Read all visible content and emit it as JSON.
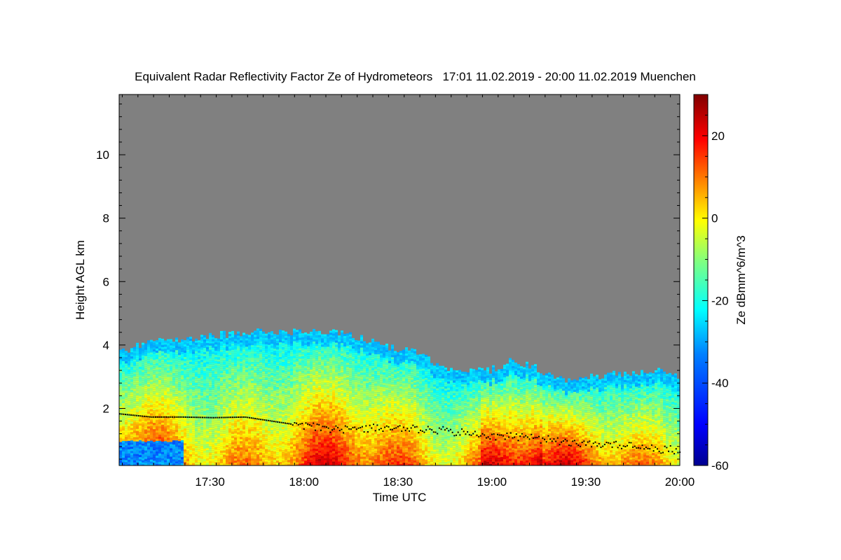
{
  "chart_data": {
    "type": "heatmap",
    "title": "Equivalent Radar Reflectivity Factor Ze of Hydrometeors   17:01 11.02.2019 - 20:00 11.02.2019 Muenchen",
    "xlabel": "Time UTC",
    "ylabel": "Height AGL km",
    "colorbar_label": "Ze dBmm^6/m^3",
    "x_range": [
      "17:01",
      "20:00"
    ],
    "y_range_km": [
      0.2,
      11.9
    ],
    "colorbar_range_dbz": [
      -60,
      30
    ],
    "x_ticks": [
      {
        "label": "17:30",
        "minutes": 29
      },
      {
        "label": "18:00",
        "minutes": 59
      },
      {
        "label": "18:30",
        "minutes": 89
      },
      {
        "label": "19:00",
        "minutes": 119
      },
      {
        "label": "19:30",
        "minutes": 149
      },
      {
        "label": "20:00",
        "minutes": 179
      }
    ],
    "y_ticks": [
      {
        "label": "2",
        "value": 2
      },
      {
        "label": "4",
        "value": 4
      },
      {
        "label": "6",
        "value": 6
      },
      {
        "label": "8",
        "value": 8
      },
      {
        "label": "10",
        "value": 10
      }
    ],
    "colorbar_ticks": [
      {
        "label": "20",
        "value": 20
      },
      {
        "label": "0",
        "value": 0
      },
      {
        "label": "-20",
        "value": -20
      },
      {
        "label": "-40",
        "value": -40
      },
      {
        "label": "-60",
        "value": -60
      }
    ],
    "no_data_color": "#808080",
    "colormap": [
      "#00008f",
      "#0000ff",
      "#0080ff",
      "#00ffff",
      "#80ff80",
      "#ffff00",
      "#ff8000",
      "#ff0000",
      "#800000"
    ],
    "cloud_top_km": [
      [
        0,
        3.8
      ],
      [
        10,
        4.1
      ],
      [
        20,
        4.2
      ],
      [
        30,
        4.3
      ],
      [
        40,
        4.4
      ],
      [
        50,
        4.4
      ],
      [
        60,
        4.4
      ],
      [
        70,
        4.4
      ],
      [
        80,
        4.1
      ],
      [
        87,
        3.9
      ],
      [
        95,
        3.8
      ],
      [
        102,
        3.3
      ],
      [
        110,
        3.2
      ],
      [
        118,
        3.2
      ],
      [
        125,
        3.5
      ],
      [
        132,
        3.3
      ],
      [
        140,
        2.9
      ],
      [
        150,
        3.0
      ],
      [
        160,
        3.1
      ],
      [
        170,
        3.2
      ],
      [
        179,
        3.0
      ]
    ],
    "cloud_base_km": [
      [
        0,
        1.85
      ],
      [
        10,
        1.75
      ],
      [
        20,
        1.75
      ],
      [
        30,
        1.73
      ],
      [
        40,
        1.75
      ],
      [
        50,
        1.6
      ],
      [
        60,
        1.45
      ],
      [
        70,
        1.35
      ],
      [
        80,
        1.4
      ],
      [
        90,
        1.4
      ],
      [
        100,
        1.35
      ],
      [
        110,
        1.25
      ],
      [
        120,
        1.15
      ],
      [
        130,
        1.1
      ],
      [
        140,
        1.0
      ],
      [
        150,
        0.9
      ],
      [
        160,
        0.85
      ],
      [
        170,
        0.75
      ],
      [
        179,
        0.7
      ]
    ],
    "grid": false,
    "legend": "colorbar-right"
  }
}
